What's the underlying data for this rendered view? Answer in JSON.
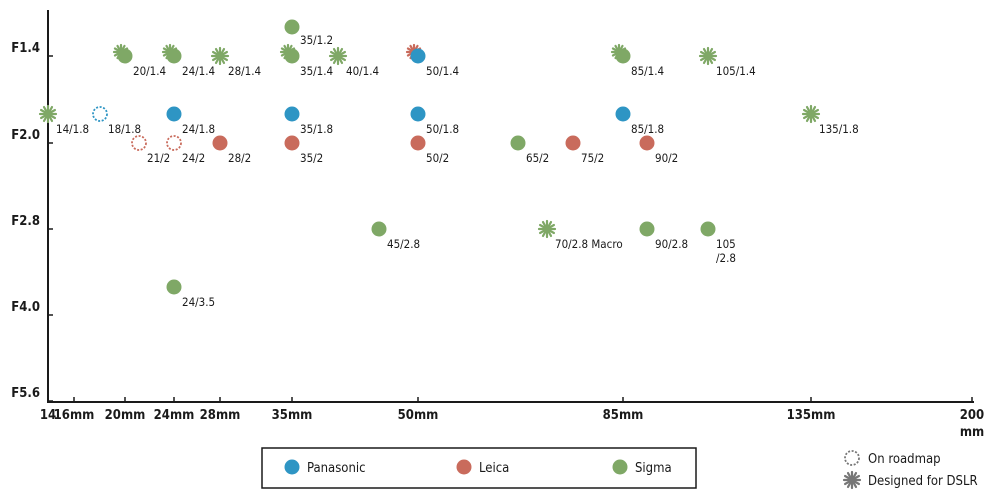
{
  "colors": {
    "Panasonic": "#2e95c4",
    "Leica": "#c96b5c",
    "Sigma": "#7fa866",
    "axis": "#1a1a1a",
    "marker_gray": "#777777"
  },
  "chart_data": {
    "type": "scatter",
    "y_ticks": [
      {
        "label": "F1.4",
        "v": 1.4
      },
      {
        "label": "F2.0",
        "v": 2.0
      },
      {
        "label": "F2.8",
        "v": 2.8
      },
      {
        "label": "F4.0",
        "v": 4.0
      },
      {
        "label": "F5.6",
        "v": 5.6
      }
    ],
    "x_ticks": [
      {
        "label": "14",
        "v": 14
      },
      {
        "label": "16mm",
        "v": 16
      },
      {
        "label": "20mm",
        "v": 20
      },
      {
        "label": "24mm",
        "v": 24
      },
      {
        "label": "28mm",
        "v": 28
      },
      {
        "label": "35mm",
        "v": 35
      },
      {
        "label": "50mm",
        "v": 50
      },
      {
        "label": "85mm",
        "v": 85
      },
      {
        "label": "135mm",
        "v": 135
      },
      {
        "label": "200",
        "v": 200
      }
    ],
    "x_unit_label": "mm",
    "legend": {
      "series": [
        "Panasonic",
        "Leica",
        "Sigma"
      ],
      "markers": [
        {
          "key": "roadmap",
          "label": "On roadmap"
        },
        {
          "key": "dslr",
          "label": "Designed for DSLR"
        }
      ]
    },
    "points": [
      {
        "brand": "Sigma",
        "focal": 35,
        "f": 1.2,
        "label": "35/1.2",
        "lpos": "r"
      },
      {
        "brand": "Sigma",
        "focal": 20,
        "f": 1.4,
        "label": "20/1.4",
        "lpos": "br"
      },
      {
        "brand": "Sigma",
        "focal": 24,
        "f": 1.4,
        "label": "24/1.4",
        "lpos": "br"
      },
      {
        "brand": "Sigma",
        "focal": 28,
        "f": 1.4,
        "label": "28/1.4",
        "lpos": "br",
        "dslr": true
      },
      {
        "brand": "Sigma",
        "focal": 35,
        "f": 1.4,
        "label": "35/1.4",
        "lpos": "br"
      },
      {
        "brand": "Sigma",
        "focal": 40,
        "f": 1.4,
        "label": "40/1.4",
        "lpos": "br",
        "dslr": true
      },
      {
        "brand": "Panasonic",
        "focal": 50,
        "f": 1.4,
        "label": "50/1.4",
        "lpos": "br"
      },
      {
        "brand": "Sigma",
        "focal": 85,
        "f": 1.4,
        "label": "85/1.4",
        "lpos": "br"
      },
      {
        "brand": "Sigma",
        "focal": 105,
        "f": 1.4,
        "label": "105/1.4",
        "lpos": "br",
        "dslr": true
      },
      {
        "brand": "Sigma",
        "focal": 14,
        "f": 1.8,
        "label": "14/1.8",
        "lpos": "br",
        "dslr": true
      },
      {
        "brand": "Panasonic",
        "focal": 18,
        "f": 1.8,
        "label": "18/1.8",
        "lpos": "br",
        "roadmap": true
      },
      {
        "brand": "Panasonic",
        "focal": 24,
        "f": 1.8,
        "label": "24/1.8",
        "lpos": "br"
      },
      {
        "brand": "Panasonic",
        "focal": 35,
        "f": 1.8,
        "label": "35/1.8",
        "lpos": "br"
      },
      {
        "brand": "Panasonic",
        "focal": 50,
        "f": 1.8,
        "label": "50/1.8",
        "lpos": "br"
      },
      {
        "brand": "Panasonic",
        "focal": 85,
        "f": 1.8,
        "label": "85/1.8",
        "lpos": "br"
      },
      {
        "brand": "Sigma",
        "focal": 135,
        "f": 1.8,
        "label": "135/1.8",
        "lpos": "br",
        "dslr": true
      },
      {
        "brand": "Leica",
        "focal": 21,
        "f": 2.0,
        "label": "21/2",
        "lpos": "br",
        "roadmap": true
      },
      {
        "brand": "Leica",
        "focal": 24,
        "f": 2.0,
        "label": "24/2",
        "lpos": "br",
        "roadmap": true
      },
      {
        "brand": "Leica",
        "focal": 28,
        "f": 2.0,
        "label": "28/2",
        "lpos": "br"
      },
      {
        "brand": "Leica",
        "focal": 35,
        "f": 2.0,
        "label": "35/2",
        "lpos": "br"
      },
      {
        "brand": "Leica",
        "focal": 50,
        "f": 2.0,
        "label": "50/2",
        "lpos": "br"
      },
      {
        "brand": "Sigma",
        "focal": 65,
        "f": 2.0,
        "label": "65/2",
        "lpos": "br"
      },
      {
        "brand": "Leica",
        "focal": 75,
        "f": 2.0,
        "label": "75/2",
        "lpos": "br"
      },
      {
        "brand": "Leica",
        "focal": 90,
        "f": 2.0,
        "label": "90/2",
        "lpos": "br"
      },
      {
        "brand": "Sigma",
        "focal": 45,
        "f": 2.8,
        "label": "45/2.8",
        "lpos": "br"
      },
      {
        "brand": "Sigma",
        "focal": 70,
        "f": 2.8,
        "label": "70/2.8 Macro",
        "lpos": "br",
        "dslr": true
      },
      {
        "brand": "Sigma",
        "focal": 90,
        "f": 2.8,
        "label": "90/2.8",
        "lpos": "br"
      },
      {
        "brand": "Sigma",
        "focal": 105,
        "f": 2.8,
        "label": "105\n/2.8",
        "lpos": "br"
      },
      {
        "brand": "Sigma",
        "focal": 24,
        "f": 3.5,
        "label": "24/3.5",
        "lpos": "br"
      }
    ],
    "extra_markers": [
      {
        "brand": "Sigma",
        "focal": 20,
        "f": 1.4,
        "dslr": true
      },
      {
        "brand": "Sigma",
        "focal": 24,
        "f": 1.4,
        "dslr": true
      },
      {
        "brand": "Sigma",
        "focal": 35,
        "f": 1.4,
        "dslr": true
      },
      {
        "brand": "Leica",
        "focal": 50,
        "f": 1.4,
        "dslr": true
      },
      {
        "brand": "Sigma",
        "focal": 85,
        "f": 1.4,
        "dslr": true
      },
      {
        "brand": "Sigma",
        "focal": 24,
        "f": 2.0
      },
      {
        "brand": "Sigma",
        "focal": 35,
        "f": 2.0
      }
    ]
  }
}
